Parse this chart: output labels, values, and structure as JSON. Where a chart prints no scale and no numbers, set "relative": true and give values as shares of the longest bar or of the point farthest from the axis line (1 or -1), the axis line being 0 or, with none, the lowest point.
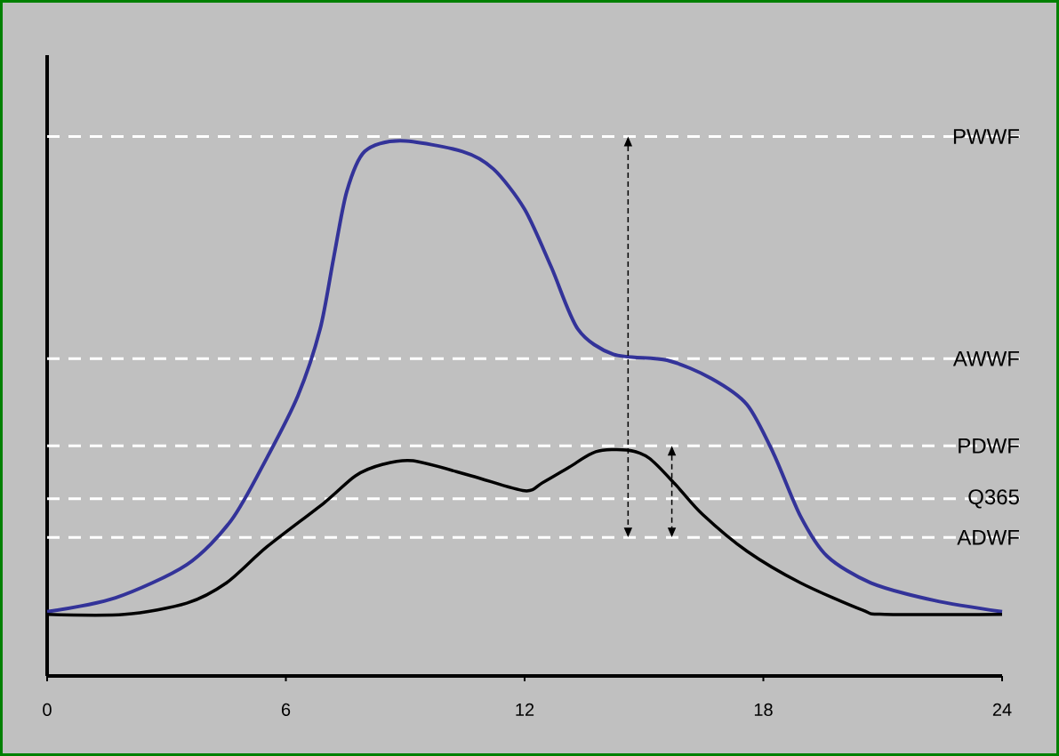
{
  "chart_data": {
    "type": "line",
    "relative": true,
    "xlim": [
      0,
      24
    ],
    "xticks": [
      0,
      6,
      12,
      18,
      24
    ],
    "tick_labels": "x",
    "series": [
      {
        "color": "#333399",
        "x": [
          0,
          1.72,
          3.51,
          4.63,
          5.52,
          6.3,
          6.86,
          7.2,
          7.53,
          7.98,
          8.87,
          10.44,
          11.22,
          12.0,
          12.67,
          13.34,
          14.23,
          15.58,
          16.69,
          17.59,
          18.26,
          18.93,
          19.6,
          20.7,
          22.3,
          24
        ],
        "values": [
          0.12,
          0.146,
          0.208,
          0.291,
          0.407,
          0.523,
          0.648,
          0.781,
          0.905,
          0.98,
          1.0,
          0.98,
          0.947,
          0.872,
          0.764,
          0.648,
          0.601,
          0.59,
          0.556,
          0.507,
          0.415,
          0.299,
          0.224,
          0.174,
          0.141,
          0.12
        ]
      },
      {
        "color": "#000000",
        "x": [
          0,
          1.94,
          3.51,
          4.51,
          5.52,
          6.97,
          7.75,
          8.42,
          9.2,
          10.66,
          12.0,
          12.45,
          13.12,
          13.79,
          14.57,
          15.13,
          15.8,
          16.47,
          17.59,
          18.93,
          20.49,
          21.05,
          24
        ],
        "values": [
          0.115,
          0.115,
          0.136,
          0.174,
          0.241,
          0.324,
          0.374,
          0.395,
          0.402,
          0.374,
          0.346,
          0.361,
          0.39,
          0.419,
          0.422,
          0.407,
          0.357,
          0.302,
          0.233,
          0.174,
          0.123,
          0.115,
          0.115
        ]
      }
    ],
    "ref_lines": [
      {
        "axis": "y",
        "value": 1.008,
        "label": "PWWF",
        "color": "#ffffff",
        "line_style": "dashed"
      },
      {
        "axis": "y",
        "value": 0.593,
        "label": "AWWF",
        "color": "#ffffff",
        "line_style": "dashed"
      },
      {
        "axis": "y",
        "value": 0.43,
        "label": "PDWF",
        "color": "#ffffff",
        "line_style": "dashed"
      },
      {
        "axis": "y",
        "value": 0.331,
        "label": "Q365",
        "color": "#ffffff",
        "line_style": "dashed"
      },
      {
        "axis": "y",
        "value": 0.259,
        "label": "ADWF",
        "color": "#ffffff",
        "line_style": "dashed"
      }
    ]
  }
}
